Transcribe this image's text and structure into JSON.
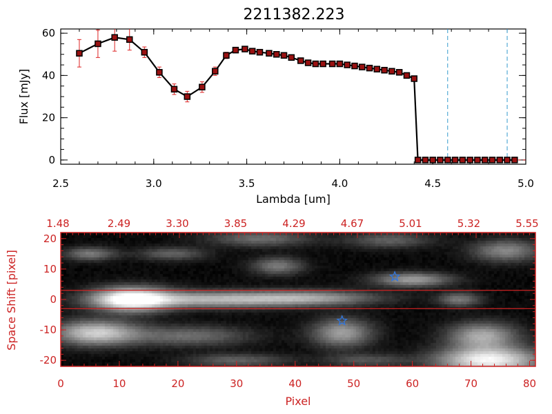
{
  "figure_title": "2211382.223",
  "colors": {
    "red_axis": "#cc2222",
    "data_line": "#000000",
    "marker": "#991111",
    "error_bar": "#dd2222",
    "cutoff_line": "#3399cc",
    "star": "#3377dd"
  },
  "chart_data": [
    {
      "type": "line",
      "title": "2211382.223",
      "xlabel": "Lambda [um]",
      "ylabel": "Flux [mJy]",
      "xlim": [
        2.5,
        5.0
      ],
      "ylim": [
        -2,
        62
      ],
      "x_ticks": [
        "2.5",
        "3.0",
        "3.5",
        "4.0",
        "4.5",
        "5.0"
      ],
      "y_ticks": [
        "0",
        "20",
        "40",
        "60"
      ],
      "series": [
        {
          "x": [
            2.6,
            2.7,
            2.79,
            2.87,
            2.95,
            3.03,
            3.11,
            3.18,
            3.26,
            3.33,
            3.39,
            3.44,
            3.49,
            3.53,
            3.57,
            3.62,
            3.66,
            3.7,
            3.74,
            3.79,
            3.83,
            3.87,
            3.91,
            3.96,
            4.0,
            4.04,
            4.08,
            4.12,
            4.16,
            4.2,
            4.24,
            4.28,
            4.32,
            4.36,
            4.4,
            4.42,
            4.46,
            4.5,
            4.54,
            4.58,
            4.62,
            4.66,
            4.7,
            4.74,
            4.78,
            4.82,
            4.86,
            4.9,
            4.94
          ],
          "y": [
            50.5,
            55,
            58,
            57,
            51,
            41.5,
            33.5,
            30,
            34.5,
            42,
            49.5,
            52,
            52.5,
            51.5,
            51,
            50.5,
            50,
            49.5,
            48.5,
            47,
            46,
            45.5,
            45.5,
            45.5,
            45.5,
            45,
            44.5,
            44,
            43.5,
            43,
            42.5,
            42,
            41.5,
            40,
            38.5,
            0,
            0,
            0,
            0,
            0,
            0,
            0,
            0,
            0,
            0,
            0,
            0,
            0,
            0
          ],
          "errors": [
            6.5,
            6.5,
            6.5,
            5,
            2.5,
            2.5,
            2.5,
            2.5,
            2.5,
            2,
            1.5,
            1,
            1,
            1,
            1,
            1,
            1,
            1,
            1,
            1,
            1,
            1,
            1,
            1,
            1,
            1,
            1,
            1,
            1,
            1,
            1,
            1,
            1,
            1,
            1,
            0,
            0,
            0,
            0,
            0,
            0,
            0,
            0,
            0,
            0,
            0,
            0,
            0,
            0
          ]
        }
      ],
      "vertical_dashed_lines": [
        4.58,
        4.9
      ]
    },
    {
      "type": "heatmap",
      "xlabel": "Pixel",
      "ylabel": "Space Shift [pixel]",
      "xlim": [
        0,
        81
      ],
      "ylim": [
        -22,
        22
      ],
      "x_ticks": [
        "0",
        "10",
        "20",
        "30",
        "40",
        "50",
        "60",
        "70",
        "80"
      ],
      "y_ticks": [
        "-20",
        "-10",
        "0",
        "10",
        "20"
      ],
      "top_axis_ticks": [
        "1.48",
        "2.49",
        "3.30",
        "3.85",
        "4.29",
        "4.67",
        "5.01",
        "5.32",
        "5.55"
      ],
      "extraction_window": [
        -3,
        3
      ],
      "stars": [
        {
          "x": 57,
          "y": 7.5
        },
        {
          "x": 48,
          "y": -7
        }
      ],
      "blobs": [
        {
          "x": 12,
          "y": 0,
          "sx": 4.5,
          "sy": 2.7,
          "a": 1.0
        },
        {
          "x": 26,
          "y": 0,
          "sx": 11,
          "sy": 1.9,
          "a": 0.62
        },
        {
          "x": 43,
          "y": 0.5,
          "sx": 8,
          "sy": 1.7,
          "a": 0.45
        },
        {
          "x": 68,
          "y": 0,
          "sx": 2.5,
          "sy": 1.6,
          "a": 0.4
        },
        {
          "x": 6,
          "y": -11,
          "sx": 5,
          "sy": 2.8,
          "a": 0.75
        },
        {
          "x": 22,
          "y": -12,
          "sx": 7,
          "sy": 2.3,
          "a": 0.35
        },
        {
          "x": 48,
          "y": -11,
          "sx": 3.5,
          "sy": 3.2,
          "a": 0.55
        },
        {
          "x": 72,
          "y": -12,
          "sx": 4,
          "sy": 3,
          "a": 0.6
        },
        {
          "x": 73,
          "y": -20,
          "sx": 6,
          "sy": 3,
          "a": 0.95
        },
        {
          "x": 60,
          "y": 6.5,
          "sx": 4.5,
          "sy": 1.6,
          "a": 0.55
        },
        {
          "x": 5,
          "y": 15,
          "sx": 3,
          "sy": 1.5,
          "a": 0.4
        },
        {
          "x": 19,
          "y": 15,
          "sx": 4,
          "sy": 1.5,
          "a": 0.3
        },
        {
          "x": 34,
          "y": 20,
          "sx": 6,
          "sy": 1.8,
          "a": 0.35
        },
        {
          "x": 56,
          "y": 19.5,
          "sx": 5,
          "sy": 1.8,
          "a": 0.3
        },
        {
          "x": 37,
          "y": 11,
          "sx": 3,
          "sy": 2,
          "a": 0.4
        },
        {
          "x": 76,
          "y": 16,
          "sx": 4,
          "sy": 2.5,
          "a": 0.45
        },
        {
          "x": 30,
          "y": -20,
          "sx": 6,
          "sy": 1.5,
          "a": 0.3
        },
        {
          "x": 52,
          "y": -20,
          "sx": 5,
          "sy": 1.5,
          "a": 0.25
        }
      ]
    }
  ]
}
